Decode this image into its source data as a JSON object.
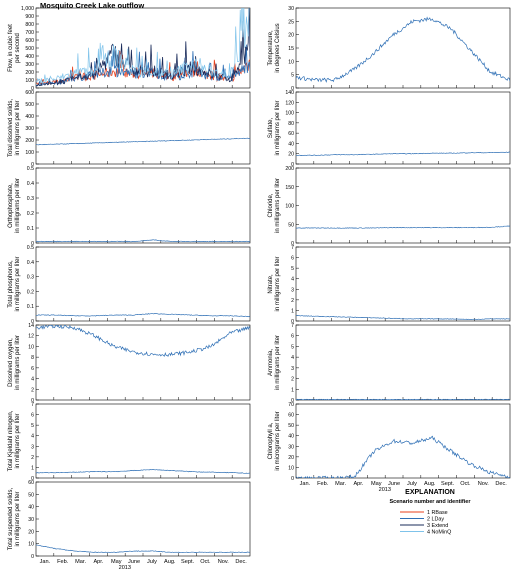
{
  "figure": {
    "title": "Mosquito Creek Lake outflow",
    "month_labels": [
      "Jan.",
      "Feb.",
      "Mar.",
      "Apr.",
      "May",
      "June",
      "July",
      "Aug.",
      "Sept.",
      "Oct.",
      "Nov.",
      "Dec."
    ],
    "year": "2013",
    "colors": {
      "rbase": "#e8401c",
      "lday": "#2e6fb5",
      "extend": "#1a2b5a",
      "nomin": "#7fc3ea"
    }
  },
  "legend": {
    "title": "EXPLANATION",
    "subtitle": "Scenario number and identifier",
    "entries": [
      {
        "label": "1 RBase",
        "color": "#e8401c"
      },
      {
        "label": "2 LDay",
        "color": "#2e6fb5"
      },
      {
        "label": "3 Extend",
        "color": "#1a2b5a"
      },
      {
        "label": "4 NoMinQ",
        "color": "#7fc3ea"
      }
    ]
  },
  "chart_data": [
    {
      "id": "flow",
      "type": "line",
      "title": "Mosquito Creek Lake outflow",
      "ylabel": [
        "Flow, in cubic feet",
        "per second"
      ],
      "ylim": [
        0,
        1000
      ],
      "yticks": [
        "0",
        "100",
        "200",
        "300",
        "400",
        "500",
        "600",
        "700",
        "800",
        "900",
        "1,000"
      ],
      "x": [
        "Jan.",
        "Feb.",
        "Mar.",
        "Apr.",
        "May",
        "June",
        "July",
        "Aug.",
        "Sept.",
        "Oct.",
        "Nov.",
        "Dec."
      ],
      "series": [
        {
          "name": "1 RBase",
          "values": [
            60,
            80,
            150,
            180,
            250,
            200,
            220,
            160,
            250,
            180,
            120,
            380
          ]
        },
        {
          "name": "2 LDay",
          "values": [
            50,
            70,
            150,
            190,
            260,
            210,
            230,
            150,
            240,
            170,
            120,
            370
          ]
        },
        {
          "name": "3 Extend",
          "values": [
            40,
            60,
            140,
            210,
            520,
            230,
            250,
            170,
            300,
            190,
            130,
            600
          ]
        },
        {
          "name": "4 NoMinQ",
          "values": [
            100,
            130,
            220,
            240,
            480,
            250,
            230,
            200,
            350,
            240,
            200,
            1000
          ]
        }
      ]
    },
    {
      "id": "temp",
      "type": "line",
      "ylabel": [
        "Temperature,",
        "in degrees Celsius"
      ],
      "ylim": [
        0,
        30
      ],
      "yticks": [
        "0",
        "5",
        "10",
        "15",
        "20",
        "25",
        "30"
      ],
      "x": [
        "Jan.",
        "Feb.",
        "Mar.",
        "Apr.",
        "May",
        "June",
        "July",
        "Aug.",
        "Sept.",
        "Oct.",
        "Nov.",
        "Dec."
      ],
      "series": [
        {
          "values": [
            4,
            3,
            3,
            7,
            13,
            20,
            25,
            26,
            22,
            14,
            6,
            3
          ]
        }
      ]
    },
    {
      "id": "tds",
      "type": "line",
      "ylabel": [
        "Total dissolved solids,",
        "in milligrams per liter"
      ],
      "ylim": [
        0,
        600
      ],
      "yticks": [
        "0",
        "100",
        "200",
        "300",
        "400",
        "500",
        "600"
      ],
      "x": [
        "Jan.",
        "Feb.",
        "Mar.",
        "Apr.",
        "May",
        "June",
        "July",
        "Aug.",
        "Sept.",
        "Oct.",
        "Nov.",
        "Dec."
      ],
      "series": [
        {
          "values": [
            160,
            165,
            170,
            175,
            180,
            185,
            190,
            195,
            200,
            205,
            210,
            215
          ]
        }
      ]
    },
    {
      "id": "sulfate",
      "type": "line",
      "ylabel": [
        "Sulfate,",
        "in milligrams per liter"
      ],
      "ylim": [
        0,
        140
      ],
      "yticks": [
        "0",
        "20",
        "40",
        "60",
        "80",
        "100",
        "120",
        "140"
      ],
      "x": [
        "Jan.",
        "Feb.",
        "Mar.",
        "Apr.",
        "May",
        "June",
        "July",
        "Aug.",
        "Sept.",
        "Oct.",
        "Nov.",
        "Dec."
      ],
      "series": [
        {
          "values": [
            17,
            17,
            18,
            18,
            19,
            20,
            20,
            21,
            21,
            22,
            22,
            23
          ]
        }
      ]
    },
    {
      "id": "ortho",
      "type": "line",
      "ylabel": [
        "Orthophosphate,",
        "in milligrams per liter"
      ],
      "ylim": [
        0,
        0.5
      ],
      "yticks": [
        "0",
        "0.1",
        "0.2",
        "0.3",
        "0.4",
        "0.5"
      ],
      "x": [
        "Jan.",
        "Feb.",
        "Mar.",
        "Apr.",
        "May",
        "June",
        "July",
        "Aug.",
        "Sept.",
        "Oct.",
        "Nov.",
        "Dec."
      ],
      "series": [
        {
          "values": [
            0.01,
            0.01,
            0.01,
            0.01,
            0.01,
            0.01,
            0.02,
            0.01,
            0.01,
            0.01,
            0.01,
            0.01
          ]
        }
      ]
    },
    {
      "id": "chloride",
      "type": "line",
      "ylabel": [
        "Chloride,",
        "in milligrams per liter"
      ],
      "ylim": [
        0,
        200
      ],
      "yticks": [
        "0",
        "50",
        "100",
        "150",
        "200"
      ],
      "x": [
        "Jan.",
        "Feb.",
        "Mar.",
        "Apr.",
        "May",
        "June",
        "July",
        "Aug.",
        "Sept.",
        "Oct.",
        "Nov.",
        "Dec."
      ],
      "series": [
        {
          "values": [
            40,
            40,
            40,
            40,
            40,
            41,
            41,
            41,
            41,
            41,
            42,
            45
          ]
        }
      ]
    },
    {
      "id": "tp",
      "type": "line",
      "ylabel": [
        "Total phosphorus,",
        "in milligrams per liter"
      ],
      "ylim": [
        0,
        0.5
      ],
      "yticks": [
        "0",
        "0.1",
        "0.2",
        "0.3",
        "0.4",
        "0.5"
      ],
      "x": [
        "Jan.",
        "Feb.",
        "Mar.",
        "Apr.",
        "May",
        "June",
        "July",
        "Aug.",
        "Sept.",
        "Oct.",
        "Nov.",
        "Dec."
      ],
      "series": [
        {
          "values": [
            0.04,
            0.04,
            0.035,
            0.035,
            0.04,
            0.04,
            0.05,
            0.045,
            0.04,
            0.035,
            0.035,
            0.03
          ]
        }
      ]
    },
    {
      "id": "nitrate",
      "type": "line",
      "ylabel": [
        "Nitrate,",
        "in milligrams per liter"
      ],
      "ylim": [
        0,
        7
      ],
      "yticks": [
        "0",
        "1",
        "2",
        "3",
        "4",
        "5",
        "6",
        "7"
      ],
      "x": [
        "Jan.",
        "Feb.",
        "Mar.",
        "Apr.",
        "May",
        "June",
        "July",
        "Aug.",
        "Sept.",
        "Oct.",
        "Nov.",
        "Dec."
      ],
      "series": [
        {
          "values": [
            0.5,
            0.45,
            0.4,
            0.35,
            0.3,
            0.25,
            0.2,
            0.2,
            0.2,
            0.15,
            0.2,
            0.2
          ]
        }
      ]
    },
    {
      "id": "do",
      "type": "line",
      "ylabel": [
        "Dissolved oxygen,",
        "in milligrams per liter"
      ],
      "ylim": [
        0,
        14
      ],
      "yticks": [
        "0",
        "2",
        "4",
        "6",
        "8",
        "10",
        "12",
        "14"
      ],
      "x": [
        "Jan.",
        "Feb.",
        "Mar.",
        "Apr.",
        "May",
        "June",
        "July",
        "Aug.",
        "Sept.",
        "Oct.",
        "Nov.",
        "Dec."
      ],
      "series": [
        {
          "values": [
            13.5,
            13.8,
            13.5,
            12,
            10,
            9,
            8.5,
            8.5,
            9,
            10,
            12.5,
            13.5
          ]
        }
      ]
    },
    {
      "id": "ammonia",
      "type": "line",
      "ylabel": [
        "Ammonia,",
        "in milligrams per liter"
      ],
      "ylim": [
        0,
        7
      ],
      "yticks": [
        "0",
        "1",
        "2",
        "3",
        "4",
        "5",
        "6",
        "7"
      ],
      "x": [
        "Jan.",
        "Feb.",
        "Mar.",
        "Apr.",
        "May",
        "June",
        "July",
        "Aug.",
        "Sept.",
        "Oct.",
        "Nov.",
        "Dec."
      ],
      "series": [
        {
          "values": [
            0.05,
            0.05,
            0.05,
            0.05,
            0.05,
            0.05,
            0.05,
            0.05,
            0.05,
            0.05,
            0.05,
            0.05
          ]
        }
      ]
    },
    {
      "id": "tkn",
      "type": "line",
      "ylabel": [
        "Total Kjeldahl nitrogen,",
        "in milligrams per liter"
      ],
      "ylim": [
        0,
        7
      ],
      "yticks": [
        "0",
        "1",
        "2",
        "3",
        "4",
        "5",
        "6",
        "7"
      ],
      "x": [
        "Jan.",
        "Feb.",
        "Mar.",
        "Apr.",
        "May",
        "June",
        "July",
        "Aug.",
        "Sept.",
        "Oct.",
        "Nov.",
        "Dec."
      ],
      "series": [
        {
          "values": [
            0.5,
            0.5,
            0.55,
            0.6,
            0.6,
            0.7,
            0.8,
            0.7,
            0.6,
            0.55,
            0.5,
            0.45
          ]
        }
      ]
    },
    {
      "id": "chla",
      "type": "line",
      "ylabel": [
        "Chlorophyll a,",
        "in micrograms per liter"
      ],
      "ylim": [
        0,
        70
      ],
      "yticks": [
        "0",
        "10",
        "20",
        "30",
        "40",
        "50",
        "60",
        "70"
      ],
      "x": [
        "Jan.",
        "Feb.",
        "Mar.",
        "Apr.",
        "May",
        "June",
        "July",
        "Aug.",
        "Sept.",
        "Oct.",
        "Nov.",
        "Dec."
      ],
      "series": [
        {
          "values": [
            0,
            0,
            0,
            1,
            25,
            35,
            33,
            38,
            25,
            13,
            5,
            1
          ]
        }
      ]
    },
    {
      "id": "tss",
      "type": "line",
      "ylabel": [
        "Total suspended solids,",
        "in milligrams per liter"
      ],
      "ylim": [
        0,
        60
      ],
      "yticks": [
        "0",
        "10",
        "20",
        "30",
        "40",
        "50",
        "60"
      ],
      "x": [
        "Jan.",
        "Feb.",
        "Mar.",
        "Apr.",
        "May",
        "June",
        "July",
        "Aug.",
        "Sept.",
        "Oct.",
        "Nov.",
        "Dec."
      ],
      "series": [
        {
          "values": [
            9,
            6,
            4,
            3,
            3,
            4,
            4,
            3,
            3,
            3,
            3,
            3
          ]
        }
      ]
    }
  ]
}
